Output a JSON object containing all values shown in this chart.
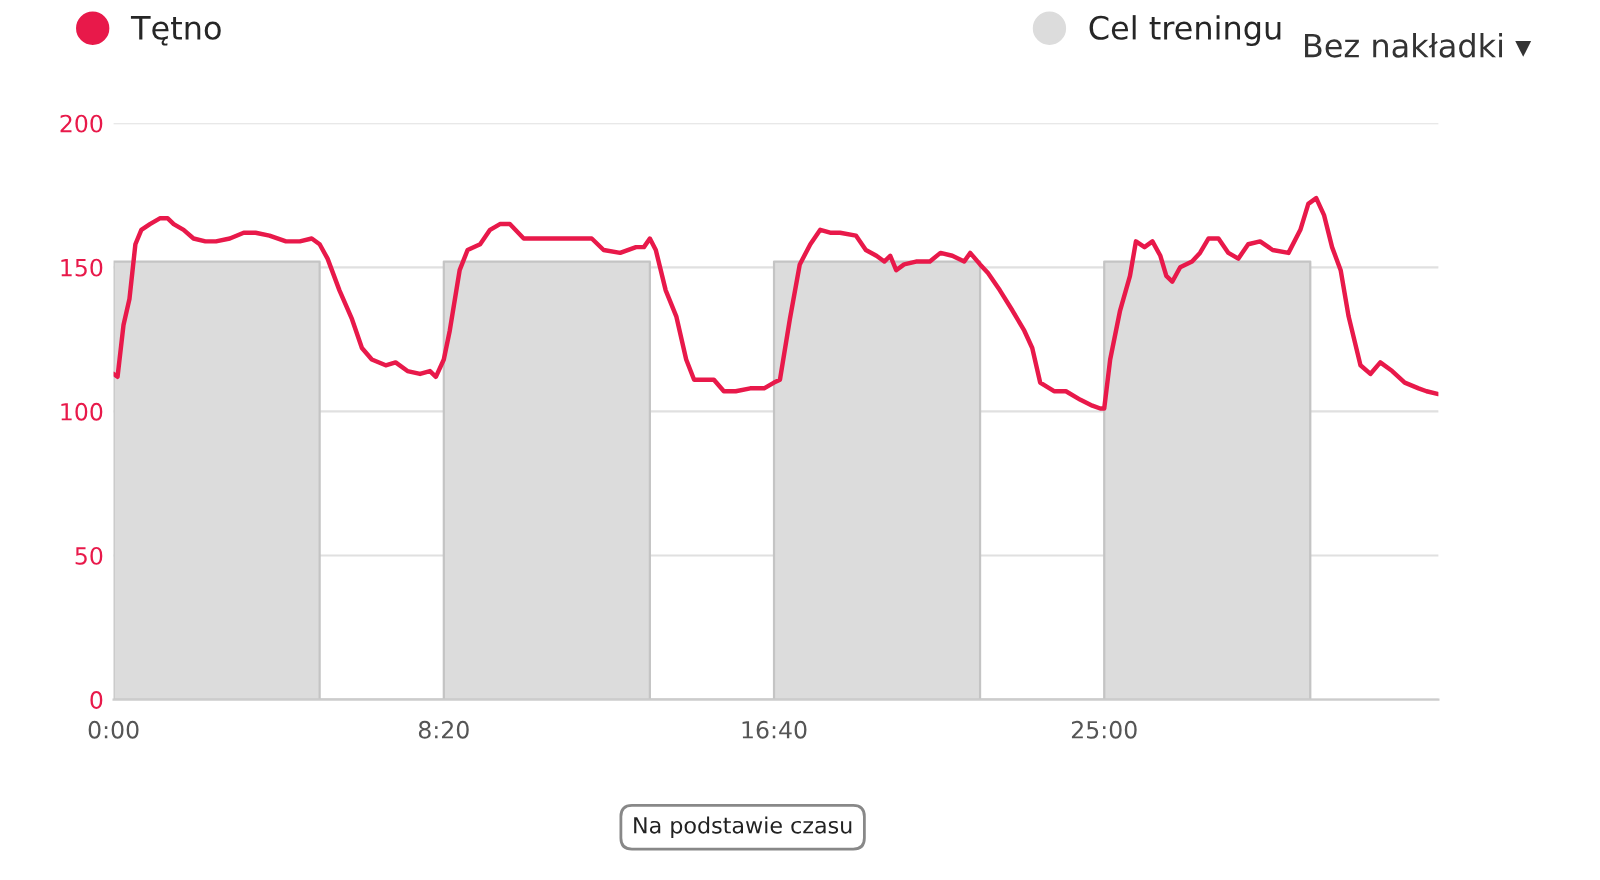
{
  "chart_data": {
    "type": "line",
    "xlim": [
      0,
      2006
    ],
    "ylim": [
      0,
      200
    ],
    "xticks": [
      {
        "value": 0,
        "label": "0:00"
      },
      {
        "value": 500,
        "label": "8:20"
      },
      {
        "value": 1000,
        "label": "16:40"
      },
      {
        "value": 1500,
        "label": "25:00"
      }
    ],
    "yticks": [
      0,
      50,
      100,
      150,
      200
    ],
    "grid": "y",
    "legend": "top",
    "annotations": [
      "Bez nakładki ▾",
      "Na podstawie czasu"
    ],
    "series": [
      {
        "name": "Tętno",
        "color": "#e8194a",
        "x": [
          0,
          6,
          15,
          24,
          33,
          42,
          55,
          70,
          82,
          91,
          106,
          121,
          139,
          155,
          176,
          197,
          215,
          236,
          261,
          282,
          300,
          312,
          324,
          342,
          361,
          376,
          391,
          412,
          427,
          445,
          464,
          479,
          488,
          500,
          509,
          524,
          536,
          555,
          570,
          585,
          600,
          621,
          645,
          670,
          688,
          706,
          724,
          742,
          767,
          791,
          803,
          812,
          821,
          836,
          852,
          867,
          879,
          894,
          909,
          924,
          942,
          964,
          985,
          1000,
          1009,
          1024,
          1039,
          1055,
          1070,
          1085,
          1100,
          1124,
          1139,
          1155,
          1167,
          1176,
          1185,
          1197,
          1215,
          1236,
          1252,
          1270,
          1288,
          1297,
          1312,
          1324,
          1342,
          1361,
          1379,
          1391,
          1403,
          1424,
          1442,
          1464,
          1482,
          1494,
          1500,
          1509,
          1524,
          1539,
          1548,
          1561,
          1573,
          1585,
          1594,
          1603,
          1615,
          1633,
          1645,
          1658,
          1673,
          1688,
          1703,
          1718,
          1736,
          1755,
          1779,
          1797,
          1809,
          1821,
          1833,
          1845,
          1858,
          1870,
          1888,
          1903,
          1918,
          1936,
          1955,
          1976,
          1988,
          2006
        ],
        "values": [
          113,
          112,
          130,
          139,
          158,
          163,
          165,
          167,
          167,
          165,
          163,
          160,
          159,
          159,
          160,
          162,
          162,
          161,
          159,
          159,
          160,
          158,
          153,
          142,
          132,
          122,
          118,
          116,
          117,
          114,
          113,
          114,
          112,
          118,
          128,
          149,
          156,
          158,
          163,
          165,
          165,
          160,
          160,
          160,
          160,
          160,
          160,
          156,
          155,
          157,
          157,
          160,
          156,
          142,
          133,
          118,
          111,
          111,
          111,
          107,
          107,
          108,
          108,
          110,
          111,
          132,
          151,
          158,
          163,
          162,
          162,
          161,
          156,
          154,
          152,
          154,
          149,
          151,
          152,
          152,
          155,
          154,
          152,
          155,
          151,
          148,
          142,
          135,
          128,
          122,
          110,
          107,
          107,
          104,
          102,
          101,
          101,
          118,
          135,
          147,
          159,
          157,
          159,
          154,
          147,
          145,
          150,
          152,
          155,
          160,
          160,
          155,
          153,
          158,
          159,
          156,
          155,
          163,
          172,
          174,
          168,
          157,
          149,
          133,
          116,
          113,
          117,
          114,
          110,
          108,
          107,
          106
        ]
      },
      {
        "name": "Cel treningu",
        "type": "area",
        "color": "#dcdcdc",
        "x": [
          0,
          312,
          312,
          500,
          500,
          812,
          812,
          1000,
          1000,
          1312,
          1312,
          1500,
          1500,
          1812,
          1812
        ],
        "values": [
          152,
          152,
          0,
          0,
          152,
          152,
          0,
          0,
          152,
          152,
          0,
          0,
          152,
          152,
          0
        ]
      }
    ]
  }
}
